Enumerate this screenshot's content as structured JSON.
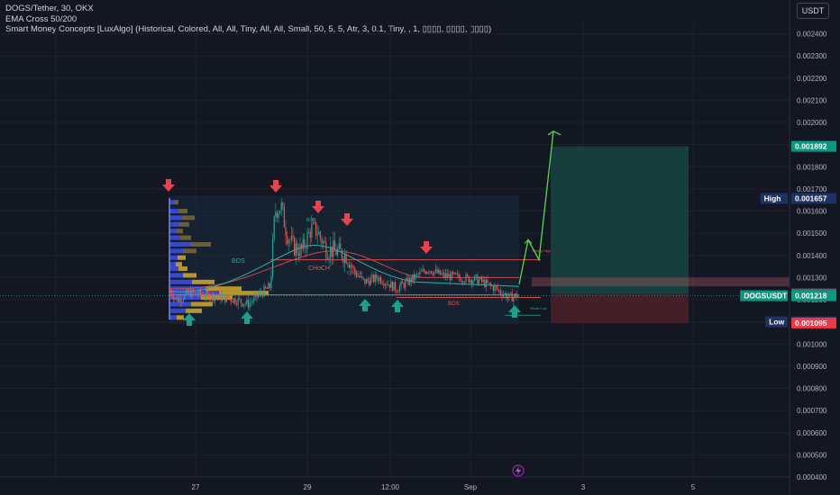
{
  "legend": {
    "symbol_line": "DOGS/Tether, 30, OKX",
    "ema_line": "EMA Cross 50/200",
    "smc_line": "Smart Money Concepts [LuxAlgo] (Historical, Colored, All, All, Tiny, All, All, Small, 50, 5, 5, Atr, 3, 0.1, Tiny, , 1, ▯▯▯▯, ▯▯▯▯, ▯▯▯▯)"
  },
  "currency_button": "USDT",
  "colors": {
    "background": "#131722",
    "up": "#26a69a",
    "down": "#ef5350",
    "arrow_down": "#e8434d",
    "arrow_up": "#1aa18a",
    "profit_zone": "#17423f",
    "loss_zone": "#4a1f27",
    "volume_blue": "#3d4ef0",
    "volume_yellow": "#d6a928",
    "projection": "#56d94c"
  },
  "chart_data": {
    "type": "candlestick",
    "symbol": "DOGS/Tether",
    "interval": "30",
    "exchange": "OKX",
    "x_tick_labels": [
      "27",
      "29",
      "12:00",
      "Sep",
      "3",
      "5"
    ],
    "y_tick_labels": [
      "0.002400",
      "0.002300",
      "0.002200",
      "0.002100",
      "0.002000",
      "0.001900",
      "0.001800",
      "0.001700",
      "0.001600",
      "0.001500",
      "0.001400",
      "0.001300",
      "0.001200",
      "0.001100",
      "0.001000",
      "0.000900",
      "0.000800",
      "0.000700",
      "0.000600",
      "0.000500",
      "0.000400"
    ],
    "ylim": [
      0.00036,
      0.00248
    ],
    "price_markers": [
      {
        "label": "",
        "value": "0.001892",
        "bg": "#089981"
      },
      {
        "label": "High",
        "value": "0.001657",
        "bg": "#1e3264"
      },
      {
        "label": "",
        "value": "0.001226",
        "bg": "#5d606b"
      },
      {
        "label": "DOGSUSDT",
        "value": "0.001218",
        "bg": "#089981"
      },
      {
        "label": "Low",
        "value": "0.001100",
        "bg": "#1e3264"
      },
      {
        "label": "",
        "value": "0.001095",
        "bg": "#f23645"
      }
    ],
    "annotations": [
      {
        "text": "BOS",
        "color": "#26a69a"
      },
      {
        "text": "CHoCH",
        "color": "#ef5350"
      },
      {
        "text": "BOS",
        "color": "#ef5350"
      },
      {
        "text": "BOS",
        "color": "#26a69a"
      },
      {
        "text": "CHoCH",
        "color": "#ef5350"
      },
      {
        "text": "Strong High",
        "color": "#ef5350"
      },
      {
        "text": "Weak Low",
        "color": "#26a69a"
      }
    ],
    "position": {
      "target": 0.001892,
      "entry": 0.001226,
      "stop": 0.001095
    },
    "grid": true
  }
}
